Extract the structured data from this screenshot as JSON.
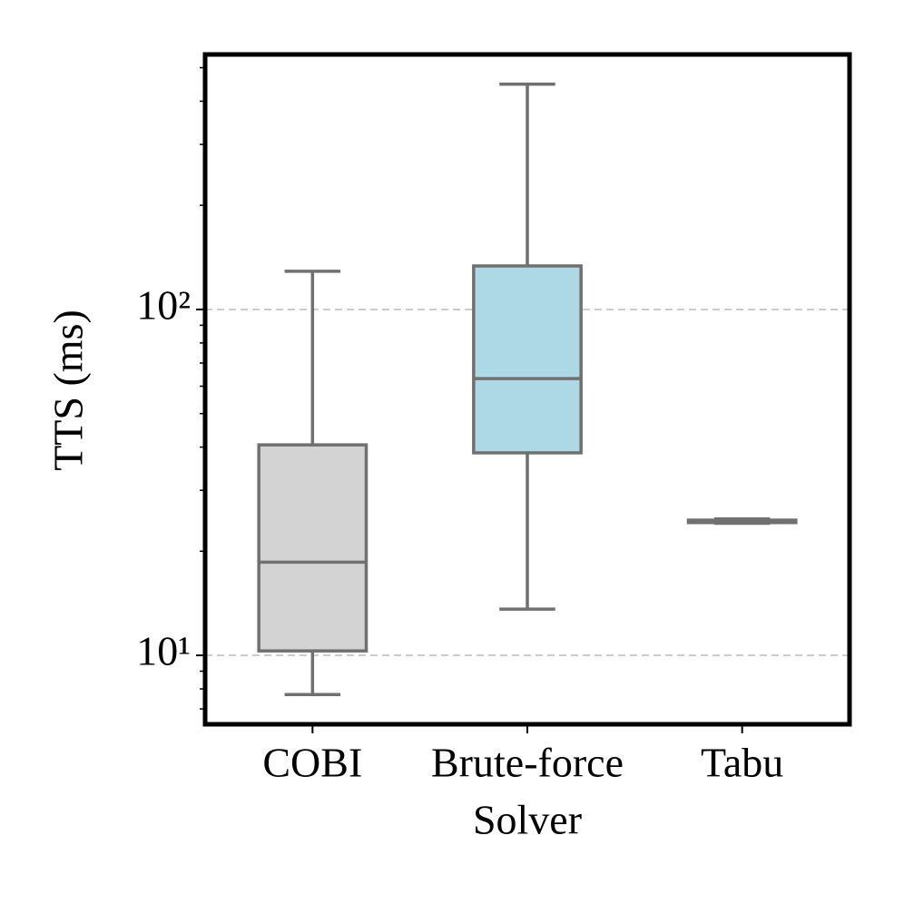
{
  "chart_data": {
    "type": "box",
    "ylabel": "TTS (ms)",
    "xlabel": "Solver",
    "categories": [
      "COBI",
      "Brute-force",
      "Tabu"
    ],
    "boxes": [
      {
        "color": "#d3d3d3",
        "whislo": 7.7,
        "q1": 10.3,
        "med": 18.6,
        "q3": 40.6,
        "whishi": 128.9
      },
      {
        "color": "#add8e6",
        "whislo": 13.6,
        "q1": 38.5,
        "med": 63.1,
        "q3": 133.6,
        "whishi": 448
      },
      {
        "color": "#d3d3d3",
        "whislo": 24.1,
        "q1": 24.2,
        "med": 24.4,
        "q3": 24.6,
        "whishi": 24.8
      }
    ],
    "edge_color": "#707070",
    "log_y": true,
    "ylim": [
      6.32,
      546
    ],
    "yticks": [
      {
        "value": 10,
        "label": "10¹"
      },
      {
        "value": 100,
        "label": "10²"
      }
    ],
    "minor_yticks": [
      7,
      8,
      9,
      20,
      30,
      40,
      50,
      60,
      70,
      80,
      90,
      200,
      300,
      400,
      500
    ],
    "grid": true
  }
}
